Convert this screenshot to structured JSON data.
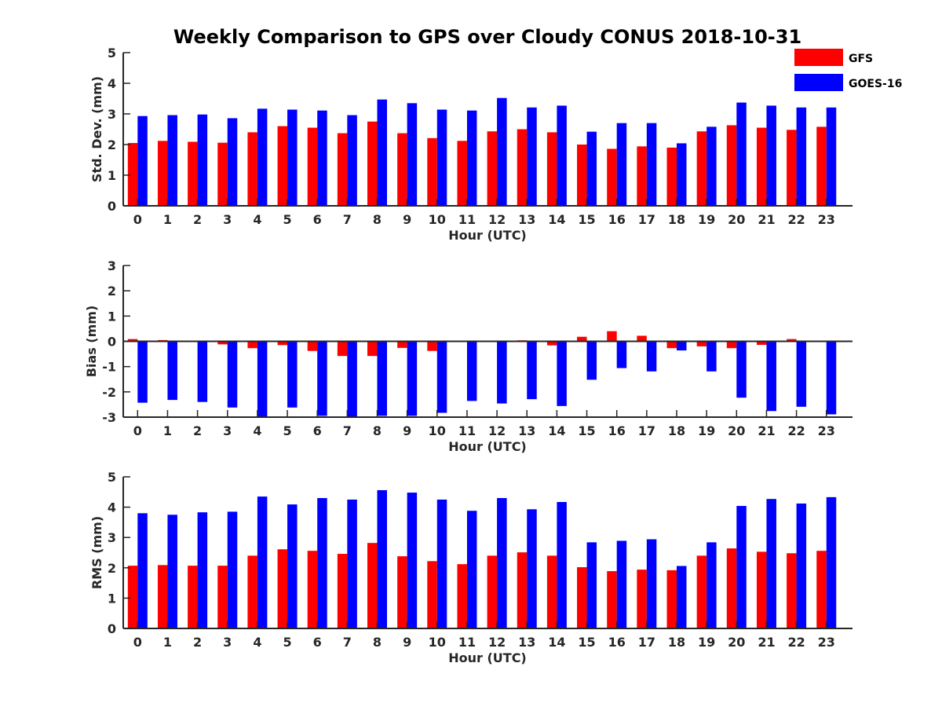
{
  "title": "Weekly Comparison to GPS over Cloudy CONUS 2018-10-31",
  "colors": {
    "gfs": "#ff0000",
    "goes": "#0000ff",
    "axis": "#262626"
  },
  "legend": {
    "placement": "top-right",
    "items": [
      "GFS",
      "GOES-16"
    ]
  },
  "chart_data": [
    {
      "type": "bar",
      "ylabel": "Std. Dev. (mm)",
      "xlabel": "Hour (UTC)",
      "ylim": [
        0,
        5
      ],
      "yticks": [
        0,
        1,
        2,
        3,
        4,
        5
      ],
      "categories": [
        "0",
        "1",
        "2",
        "3",
        "4",
        "5",
        "6",
        "7",
        "8",
        "9",
        "10",
        "11",
        "12",
        "13",
        "14",
        "15",
        "16",
        "17",
        "18",
        "19",
        "20",
        "21",
        "22",
        "23"
      ],
      "series": [
        {
          "name": "GFS",
          "values": [
            2.05,
            2.12,
            2.09,
            2.06,
            2.4,
            2.6,
            2.55,
            2.37,
            2.75,
            2.37,
            2.21,
            2.12,
            2.43,
            2.5,
            2.4,
            2.0,
            1.86,
            1.94,
            1.9,
            2.43,
            2.63,
            2.55,
            2.48,
            2.58
          ]
        },
        {
          "name": "GOES-16",
          "values": [
            2.93,
            2.96,
            2.98,
            2.86,
            3.17,
            3.14,
            3.11,
            2.96,
            3.47,
            3.35,
            3.14,
            3.11,
            3.52,
            3.21,
            3.27,
            2.42,
            2.7,
            2.7,
            2.04,
            2.58,
            3.37,
            3.27,
            3.21,
            3.21
          ]
        }
      ]
    },
    {
      "type": "bar",
      "ylabel": "Bias (mm)",
      "xlabel": "Hour (UTC)",
      "ylim": [
        -3,
        3
      ],
      "yticks": [
        -3,
        -2,
        -1,
        0,
        1,
        2,
        3
      ],
      "categories": [
        "0",
        "1",
        "2",
        "3",
        "4",
        "5",
        "6",
        "7",
        "8",
        "9",
        "10",
        "11",
        "12",
        "13",
        "14",
        "15",
        "16",
        "17",
        "18",
        "19",
        "20",
        "21",
        "22",
        "23"
      ],
      "series": [
        {
          "name": "GFS",
          "values": [
            0.09,
            0.05,
            -0.01,
            -0.12,
            -0.27,
            -0.15,
            -0.38,
            -0.58,
            -0.58,
            -0.26,
            -0.38,
            -0.01,
            -0.01,
            0.04,
            -0.16,
            0.18,
            0.4,
            0.22,
            -0.27,
            -0.2,
            -0.27,
            -0.14,
            0.09,
            0.0
          ]
        },
        {
          "name": "GOES-16",
          "values": [
            -2.43,
            -2.32,
            -2.4,
            -2.62,
            -2.98,
            -2.62,
            -2.95,
            -2.98,
            -2.95,
            -2.95,
            -2.83,
            -2.36,
            -2.46,
            -2.29,
            -2.56,
            -1.52,
            -1.06,
            -1.19,
            -0.36,
            -1.19,
            -2.23,
            -2.76,
            -2.59,
            -2.89
          ]
        }
      ]
    },
    {
      "type": "bar",
      "ylabel": "RMS (mm)",
      "xlabel": "Hour (UTC)",
      "ylim": [
        0,
        5
      ],
      "yticks": [
        0,
        1,
        2,
        3,
        4,
        5
      ],
      "categories": [
        "0",
        "1",
        "2",
        "3",
        "4",
        "5",
        "6",
        "7",
        "8",
        "9",
        "10",
        "11",
        "12",
        "13",
        "14",
        "15",
        "16",
        "17",
        "18",
        "19",
        "20",
        "21",
        "22",
        "23"
      ],
      "series": [
        {
          "name": "GFS",
          "values": [
            2.07,
            2.09,
            2.07,
            2.07,
            2.4,
            2.61,
            2.56,
            2.46,
            2.82,
            2.38,
            2.22,
            2.12,
            2.4,
            2.51,
            2.4,
            2.02,
            1.89,
            1.94,
            1.92,
            2.4,
            2.64,
            2.53,
            2.48,
            2.56
          ]
        },
        {
          "name": "GOES-16",
          "values": [
            3.8,
            3.75,
            3.83,
            3.85,
            4.35,
            4.09,
            4.3,
            4.25,
            4.56,
            4.48,
            4.25,
            3.88,
            4.3,
            3.93,
            4.17,
            2.84,
            2.89,
            2.94,
            2.06,
            2.84,
            4.04,
            4.27,
            4.12,
            4.33
          ]
        }
      ]
    }
  ]
}
